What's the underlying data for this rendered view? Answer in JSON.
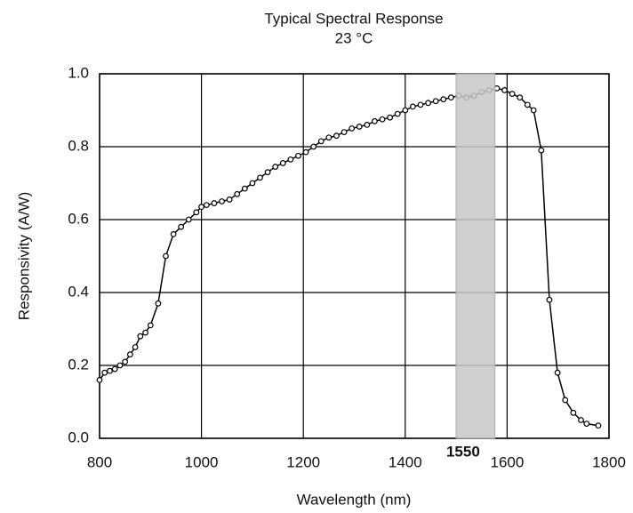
{
  "chart_data": {
    "type": "line",
    "title": "Typical Spectral Response",
    "subtitle": "23 °C",
    "x_label": "Wavelength (nm)",
    "y_label": "Responsivity (A/W)",
    "x": [
      800,
      810,
      820,
      830,
      840,
      850,
      860,
      870,
      880,
      890,
      900,
      915,
      930,
      945,
      960,
      975,
      990,
      1000,
      1010,
      1025,
      1040,
      1055,
      1070,
      1085,
      1100,
      1115,
      1130,
      1145,
      1160,
      1175,
      1190,
      1205,
      1220,
      1235,
      1250,
      1265,
      1280,
      1295,
      1310,
      1325,
      1340,
      1355,
      1370,
      1385,
      1400,
      1415,
      1430,
      1445,
      1460,
      1475,
      1490,
      1505,
      1520,
      1535,
      1550,
      1565,
      1580,
      1595,
      1610,
      1625,
      1640,
      1652,
      1667,
      1683,
      1699,
      1714,
      1730,
      1745,
      1756,
      1779
    ],
    "series": [
      {
        "name": "Responsivity",
        "color": "#000000",
        "values": [
          0.16,
          0.18,
          0.185,
          0.19,
          0.2,
          0.21,
          0.23,
          0.25,
          0.28,
          0.29,
          0.31,
          0.37,
          0.5,
          0.56,
          0.58,
          0.6,
          0.62,
          0.635,
          0.64,
          0.645,
          0.65,
          0.655,
          0.67,
          0.685,
          0.7,
          0.715,
          0.73,
          0.745,
          0.755,
          0.765,
          0.775,
          0.785,
          0.8,
          0.815,
          0.825,
          0.83,
          0.84,
          0.85,
          0.855,
          0.86,
          0.87,
          0.875,
          0.88,
          0.89,
          0.9,
          0.91,
          0.915,
          0.92,
          0.925,
          0.93,
          0.935,
          0.94,
          0.935,
          0.94,
          0.95,
          0.955,
          0.96,
          0.955,
          0.945,
          0.935,
          0.915,
          0.9,
          0.79,
          0.38,
          0.18,
          0.105,
          0.07,
          0.05,
          0.04,
          0.035
        ]
      }
    ],
    "xlim": [
      800,
      1800
    ],
    "xticks": [
      800,
      1000,
      1200,
      1400,
      1600,
      1800
    ],
    "ylim": [
      0,
      1
    ],
    "yticks": [
      {
        "value": 0,
        "label": "0.0"
      },
      0.2,
      0.4,
      0.6,
      0.8,
      {
        "value": 1,
        "label": "1.0"
      }
    ],
    "grid": true,
    "highlight": {
      "range": [
        1500,
        1576
      ],
      "label": "1550",
      "color": "#c8c8c8"
    }
  }
}
